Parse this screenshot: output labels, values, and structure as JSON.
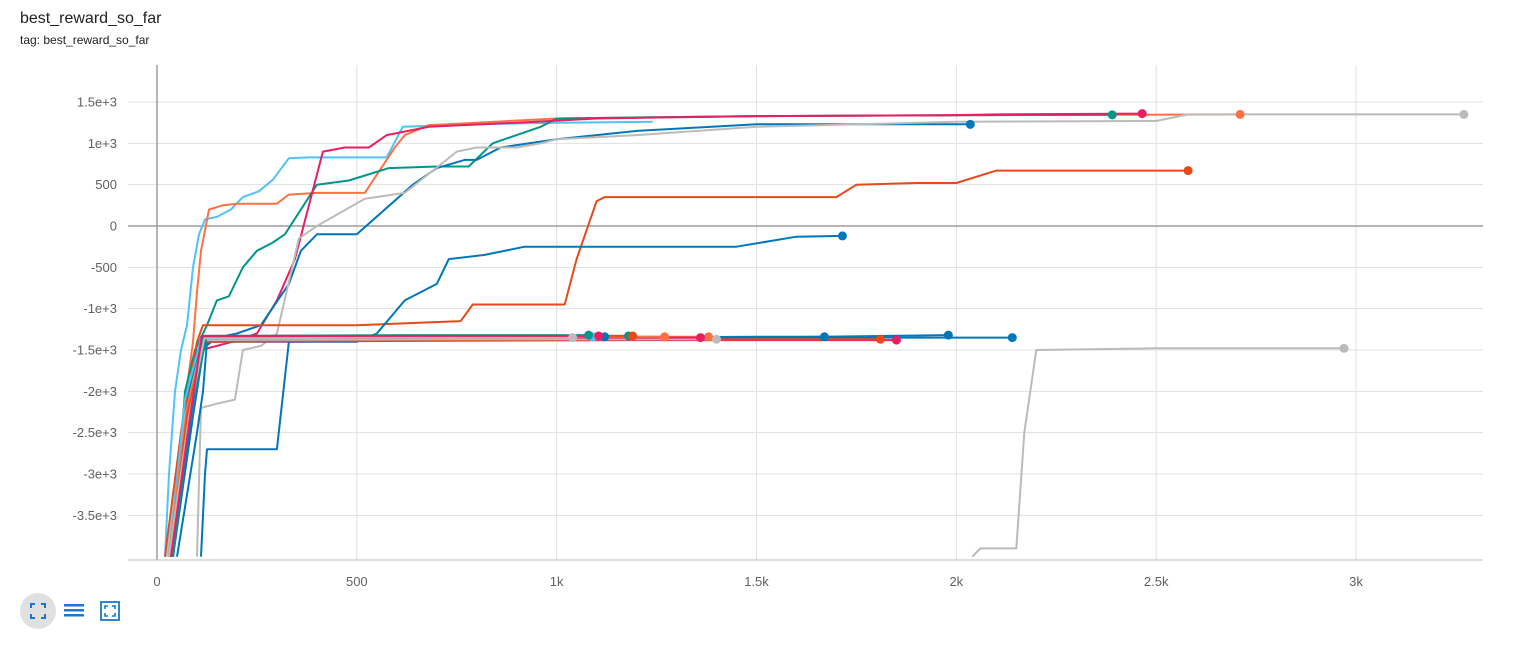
{
  "header": {
    "title": "best_reward_so_far",
    "subtitle": "tag: best_reward_so_far"
  },
  "toolbar": {
    "buttons": [
      {
        "icon": "fullscreen-icon",
        "state": "active"
      },
      {
        "icon": "toggle-y-log-icon",
        "state": "normal"
      },
      {
        "icon": "fit-domain-icon",
        "state": "normal"
      }
    ]
  },
  "chart_data": {
    "type": "line",
    "title": "best_reward_so_far",
    "xlabel": "",
    "ylabel": "",
    "xlim": [
      -70,
      3320
    ],
    "ylim": [
      -4000,
      1900
    ],
    "x_ticks": [
      0,
      500,
      1000,
      1500,
      2000,
      2500,
      3000
    ],
    "x_tick_labels": [
      "0",
      "500",
      "1k",
      "1.5k",
      "2k",
      "2.5k",
      "3k"
    ],
    "y_ticks": [
      1500,
      1000,
      500,
      0,
      -500,
      -1000,
      -1500,
      -2000,
      -2500,
      -3000,
      -3500
    ],
    "y_tick_labels": [
      "1.5e+3",
      "1e+3",
      "500",
      "0",
      "-500",
      "-1e+3",
      "-1.5e+3",
      "-2e+3",
      "-2.5e+3",
      "-3e+3",
      "-3.5e+3"
    ],
    "grid": true,
    "legend": "none",
    "series": [
      {
        "color": "#4fc3f7",
        "points": [
          [
            20,
            -4000
          ],
          [
            30,
            -3000
          ],
          [
            45,
            -2000
          ],
          [
            60,
            -1500
          ],
          [
            75,
            -1200
          ],
          [
            90,
            -500
          ],
          [
            105,
            -100
          ],
          [
            120,
            80
          ],
          [
            150,
            110
          ],
          [
            185,
            200
          ],
          [
            215,
            350
          ],
          [
            255,
            420
          ],
          [
            290,
            560
          ],
          [
            330,
            820
          ],
          [
            380,
            830
          ],
          [
            430,
            830
          ],
          [
            575,
            830
          ],
          [
            615,
            1200
          ],
          [
            800,
            1230
          ],
          [
            1000,
            1250
          ],
          [
            1240,
            1260
          ]
        ],
        "end_marker": false
      },
      {
        "color": "#ff7043",
        "points": [
          [
            30,
            -4000
          ],
          [
            60,
            -2500
          ],
          [
            90,
            -1400
          ],
          [
            100,
            -800
          ],
          [
            110,
            -300
          ],
          [
            130,
            200
          ],
          [
            165,
            250
          ],
          [
            200,
            270
          ],
          [
            300,
            270
          ],
          [
            330,
            380
          ],
          [
            400,
            400
          ],
          [
            520,
            400
          ],
          [
            595,
            950
          ],
          [
            620,
            1100
          ],
          [
            680,
            1220
          ],
          [
            800,
            1250
          ],
          [
            1000,
            1300
          ],
          [
            1500,
            1330
          ],
          [
            2000,
            1340
          ],
          [
            2400,
            1345
          ],
          [
            2710,
            1350
          ]
        ],
        "end_marker": true
      },
      {
        "color": "#009688",
        "points": [
          [
            40,
            -4000
          ],
          [
            70,
            -2000
          ],
          [
            95,
            -1500
          ],
          [
            125,
            -1200
          ],
          [
            150,
            -900
          ],
          [
            180,
            -850
          ],
          [
            215,
            -500
          ],
          [
            250,
            -300
          ],
          [
            290,
            -200
          ],
          [
            320,
            -100
          ],
          [
            400,
            500
          ],
          [
            480,
            550
          ],
          [
            580,
            700
          ],
          [
            700,
            720
          ],
          [
            780,
            720
          ],
          [
            840,
            1000
          ],
          [
            960,
            1200
          ],
          [
            1000,
            1300
          ],
          [
            1500,
            1330
          ],
          [
            2000,
            1340
          ],
          [
            2390,
            1345
          ]
        ],
        "end_marker": true
      },
      {
        "color": "#e91e63",
        "points": [
          [
            30,
            -4000
          ],
          [
            80,
            -2000
          ],
          [
            110,
            -1500
          ],
          [
            190,
            -1400
          ],
          [
            250,
            -1300
          ],
          [
            300,
            -900
          ],
          [
            345,
            -400
          ],
          [
            415,
            900
          ],
          [
            470,
            950
          ],
          [
            530,
            950
          ],
          [
            575,
            1100
          ],
          [
            680,
            1200
          ],
          [
            900,
            1250
          ],
          [
            1100,
            1300
          ],
          [
            1500,
            1330
          ],
          [
            1980,
            1340
          ],
          [
            2100,
            1350
          ],
          [
            2465,
            1360
          ]
        ],
        "end_marker": true
      },
      {
        "color": "#0077bb",
        "points": [
          [
            40,
            -4000
          ],
          [
            75,
            -2000
          ],
          [
            110,
            -1500
          ],
          [
            150,
            -1350
          ],
          [
            200,
            -1300
          ],
          [
            260,
            -1200
          ],
          [
            330,
            -700
          ],
          [
            360,
            -300
          ],
          [
            400,
            -100
          ],
          [
            500,
            -100
          ],
          [
            640,
            500
          ],
          [
            700,
            700
          ],
          [
            770,
            800
          ],
          [
            800,
            800
          ],
          [
            860,
            950
          ],
          [
            1000,
            1050
          ],
          [
            1200,
            1150
          ],
          [
            1500,
            1230
          ],
          [
            2035,
            1230
          ]
        ],
        "end_marker": true
      },
      {
        "color": "#bbbbbb",
        "points": [
          [
            100,
            -4000
          ],
          [
            110,
            -2200
          ],
          [
            150,
            -2150
          ],
          [
            195,
            -2100
          ],
          [
            215,
            -1500
          ],
          [
            260,
            -1450
          ],
          [
            300,
            -1300
          ],
          [
            355,
            -150
          ],
          [
            400,
            0
          ],
          [
            520,
            330
          ],
          [
            620,
            400
          ],
          [
            750,
            900
          ],
          [
            800,
            950
          ],
          [
            900,
            950
          ],
          [
            960,
            1000
          ],
          [
            1000,
            1050
          ],
          [
            1200,
            1100
          ],
          [
            1500,
            1200
          ],
          [
            2000,
            1260
          ],
          [
            2500,
            1270
          ],
          [
            2580,
            1350
          ],
          [
            3270,
            1350
          ]
        ],
        "end_marker": true
      },
      {
        "color": "#e64a19",
        "points": [
          [
            20,
            -4000
          ],
          [
            60,
            -2500
          ],
          [
            100,
            -1400
          ],
          [
            115,
            -1200
          ],
          [
            500,
            -1200
          ],
          [
            760,
            -1150
          ],
          [
            790,
            -950
          ],
          [
            1020,
            -950
          ],
          [
            1050,
            -400
          ],
          [
            1100,
            300
          ],
          [
            1120,
            350
          ],
          [
            1700,
            350
          ],
          [
            1750,
            500
          ],
          [
            1900,
            520
          ],
          [
            2000,
            520
          ],
          [
            2100,
            670
          ],
          [
            2580,
            670
          ]
        ],
        "end_marker": true
      },
      {
        "color": "#0077bb",
        "points": [
          [
            50,
            -4000
          ],
          [
            100,
            -2500
          ],
          [
            115,
            -2000
          ],
          [
            125,
            -1400
          ],
          [
            500,
            -1400
          ],
          [
            550,
            -1300
          ],
          [
            620,
            -900
          ],
          [
            700,
            -700
          ],
          [
            730,
            -400
          ],
          [
            820,
            -350
          ],
          [
            920,
            -250
          ],
          [
            1050,
            -250
          ],
          [
            1450,
            -250
          ],
          [
            1600,
            -130
          ],
          [
            1715,
            -120
          ]
        ],
        "end_marker": true
      },
      {
        "color": "#0077bb",
        "points": [
          [
            110,
            -4000
          ],
          [
            120,
            -3000
          ],
          [
            125,
            -2700
          ],
          [
            300,
            -2700
          ],
          [
            330,
            -1400
          ],
          [
            1000,
            -1370
          ],
          [
            1500,
            -1350
          ],
          [
            1980,
            -1320
          ]
        ],
        "end_marker": true
      },
      {
        "color": "#0077bb",
        "points": [
          [
            30,
            -4000
          ],
          [
            60,
            -2600
          ],
          [
            100,
            -1500
          ],
          [
            130,
            -1400
          ],
          [
            600,
            -1380
          ],
          [
            1100,
            -1360
          ],
          [
            1500,
            -1350
          ],
          [
            2140,
            -1350
          ]
        ],
        "end_marker": true
      },
      {
        "color": "#bbbbbb",
        "points": [
          [
            2040,
            -4000
          ],
          [
            2060,
            -3900
          ],
          [
            2150,
            -3900
          ],
          [
            2170,
            -2500
          ],
          [
            2200,
            -1500
          ],
          [
            2500,
            -1480
          ],
          [
            2970,
            -1480
          ]
        ],
        "end_marker": true
      },
      {
        "color": "#e91e63",
        "points": [
          [
            30,
            -4000
          ],
          [
            70,
            -2400
          ],
          [
            110,
            -1400
          ],
          [
            600,
            -1390
          ],
          [
            1200,
            -1380
          ],
          [
            1850,
            -1380
          ]
        ],
        "end_marker": true
      },
      {
        "color": "#e64a19",
        "points": [
          [
            40,
            -4000
          ],
          [
            80,
            -2200
          ],
          [
            120,
            -1400
          ],
          [
            700,
            -1380
          ],
          [
            1500,
            -1370
          ],
          [
            1810,
            -1370
          ]
        ],
        "end_marker": true
      },
      {
        "color": "#0077bb",
        "points": [
          [
            40,
            -4000
          ],
          [
            90,
            -2300
          ],
          [
            120,
            -1370
          ],
          [
            800,
            -1360
          ],
          [
            1500,
            -1340
          ],
          [
            1670,
            -1340
          ]
        ],
        "end_marker": true
      },
      {
        "color": "#ff7043",
        "points": [
          [
            35,
            -4000
          ],
          [
            80,
            -2300
          ],
          [
            115,
            -1350
          ],
          [
            800,
            -1340
          ],
          [
            1380,
            -1340
          ]
        ],
        "end_marker": true
      },
      {
        "color": "#009688",
        "points": [
          [
            30,
            -4000
          ],
          [
            75,
            -2200
          ],
          [
            110,
            -1340
          ],
          [
            600,
            -1330
          ],
          [
            1180,
            -1330
          ]
        ],
        "end_marker": true
      },
      {
        "color": "#bbbbbb",
        "points": [
          [
            25,
            -4000
          ],
          [
            70,
            -2300
          ],
          [
            115,
            -1380
          ],
          [
            700,
            -1370
          ],
          [
            1400,
            -1370
          ]
        ],
        "end_marker": true
      },
      {
        "color": "#4fc3f7",
        "points": [
          [
            30,
            -4000
          ],
          [
            70,
            -2100
          ],
          [
            110,
            -1360
          ],
          [
            600,
            -1350
          ],
          [
            1090,
            -1340
          ]
        ],
        "end_marker": true
      },
      {
        "color": "#e91e63",
        "points": [
          [
            35,
            -4000
          ],
          [
            80,
            -2200
          ],
          [
            120,
            -1360
          ],
          [
            700,
            -1350
          ],
          [
            1360,
            -1350
          ]
        ],
        "end_marker": true
      },
      {
        "color": "#0077bb",
        "points": [
          [
            40,
            -4000
          ],
          [
            85,
            -2300
          ],
          [
            115,
            -1350
          ],
          [
            600,
            -1340
          ],
          [
            1120,
            -1340
          ]
        ],
        "end_marker": true
      },
      {
        "color": "#ff7043",
        "points": [
          [
            30,
            -4000
          ],
          [
            75,
            -2200
          ],
          [
            120,
            -1350
          ],
          [
            800,
            -1340
          ],
          [
            1270,
            -1340
          ]
        ],
        "end_marker": true
      },
      {
        "color": "#e64a19",
        "points": [
          [
            35,
            -4000
          ],
          [
            75,
            -2300
          ],
          [
            120,
            -1340
          ],
          [
            700,
            -1330
          ],
          [
            1190,
            -1330
          ]
        ],
        "end_marker": true
      },
      {
        "color": "#009688",
        "points": [
          [
            40,
            -4000
          ],
          [
            85,
            -2200
          ],
          [
            125,
            -1330
          ],
          [
            650,
            -1320
          ],
          [
            1080,
            -1320
          ]
        ],
        "end_marker": true
      },
      {
        "color": "#bbbbbb",
        "points": [
          [
            30,
            -4000
          ],
          [
            80,
            -2300
          ],
          [
            118,
            -1360
          ],
          [
            600,
            -1350
          ],
          [
            1040,
            -1350
          ]
        ],
        "end_marker": true
      },
      {
        "color": "#e91e63",
        "points": [
          [
            35,
            -4000
          ],
          [
            80,
            -2400
          ],
          [
            112,
            -1330
          ],
          [
            600,
            -1330
          ],
          [
            1105,
            -1330
          ]
        ],
        "end_marker": true
      }
    ]
  }
}
